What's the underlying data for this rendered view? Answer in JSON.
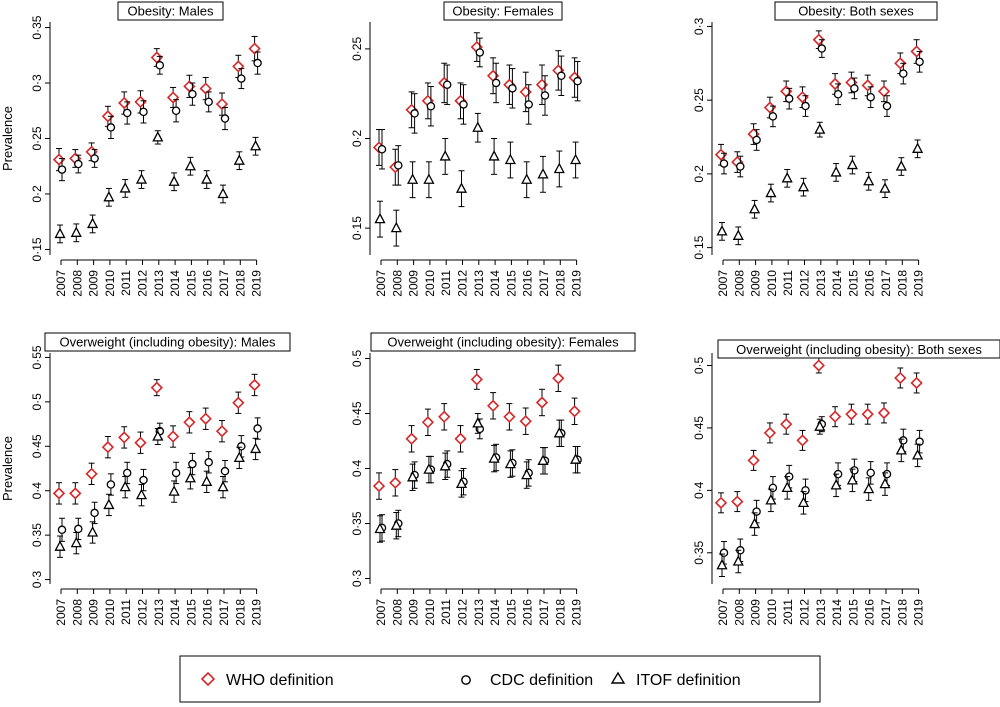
{
  "colors": {
    "who": "#d62728",
    "cdc": "#000000",
    "itof": "#000000",
    "axis": "#000000",
    "text": "#000000"
  },
  "ylabel": "Prevalence",
  "legend": {
    "who": "WHO definition",
    "cdc": "CDC definition",
    "itof": "ITOF  definition"
  },
  "chart_data": [
    {
      "type": "scatter",
      "title": "Obesity: Males",
      "ylabel": "Prevalence",
      "ylim": [
        0.145,
        0.355
      ],
      "yticks": [
        "0·15",
        "0·2",
        "0·25",
        "0·3",
        "0·35"
      ],
      "x": [
        "2007",
        "2008",
        "2009",
        "2010",
        "2011",
        "2012",
        "2013",
        "2014",
        "2015",
        "2016",
        "2017",
        "2018",
        "2019"
      ],
      "series": [
        {
          "name": "WHO definition",
          "values": [
            0.231,
            0.232,
            0.238,
            0.27,
            0.282,
            0.283,
            0.323,
            0.287,
            0.297,
            0.295,
            0.281,
            0.315,
            0.331
          ],
          "err": [
            0.01,
            0.008,
            0.008,
            0.009,
            0.01,
            0.01,
            0.008,
            0.009,
            0.01,
            0.01,
            0.01,
            0.01,
            0.011
          ]
        },
        {
          "name": "CDC definition",
          "values": [
            0.222,
            0.227,
            0.232,
            0.26,
            0.273,
            0.274,
            0.316,
            0.275,
            0.29,
            0.283,
            0.268,
            0.304,
            0.318
          ],
          "err": [
            0.01,
            0.008,
            0.008,
            0.01,
            0.01,
            0.01,
            0.008,
            0.01,
            0.01,
            0.009,
            0.01,
            0.009,
            0.01
          ]
        },
        {
          "name": "ITOF  definition",
          "values": [
            0.164,
            0.165,
            0.173,
            0.197,
            0.205,
            0.213,
            0.251,
            0.211,
            0.225,
            0.213,
            0.2,
            0.23,
            0.243
          ],
          "err": [
            0.008,
            0.008,
            0.008,
            0.008,
            0.008,
            0.008,
            0.006,
            0.008,
            0.008,
            0.008,
            0.008,
            0.008,
            0.008
          ]
        }
      ]
    },
    {
      "type": "scatter",
      "title": "Obesity: Females",
      "ylabel": "",
      "ylim": [
        0.135,
        0.265
      ],
      "yticks": [
        "0·15",
        "0·2",
        "0·25"
      ],
      "x": [
        "2007",
        "2008",
        "2009",
        "2010",
        "2011",
        "2012",
        "2013",
        "2014",
        "2015",
        "2016",
        "2017",
        "2018",
        "2019"
      ],
      "series": [
        {
          "name": "WHO definition",
          "values": [
            0.195,
            0.184,
            0.216,
            0.221,
            0.231,
            0.221,
            0.251,
            0.235,
            0.23,
            0.226,
            0.23,
            0.238,
            0.234
          ],
          "err": [
            0.01,
            0.01,
            0.01,
            0.01,
            0.011,
            0.01,
            0.008,
            0.01,
            0.011,
            0.011,
            0.011,
            0.011,
            0.011
          ]
        },
        {
          "name": "CDC definition",
          "values": [
            0.194,
            0.185,
            0.214,
            0.218,
            0.23,
            0.219,
            0.248,
            0.231,
            0.228,
            0.219,
            0.224,
            0.235,
            0.232
          ],
          "err": [
            0.011,
            0.011,
            0.011,
            0.011,
            0.011,
            0.011,
            0.008,
            0.011,
            0.011,
            0.011,
            0.011,
            0.011,
            0.011
          ]
        },
        {
          "name": "ITOF  definition",
          "values": [
            0.155,
            0.15,
            0.177,
            0.177,
            0.19,
            0.172,
            0.206,
            0.19,
            0.188,
            0.177,
            0.18,
            0.183,
            0.188
          ],
          "err": [
            0.01,
            0.01,
            0.01,
            0.01,
            0.01,
            0.01,
            0.008,
            0.01,
            0.01,
            0.01,
            0.01,
            0.01,
            0.01
          ]
        }
      ]
    },
    {
      "type": "scatter",
      "title": "Obesity: Both sexes",
      "ylabel": "",
      "ylim": [
        0.145,
        0.303
      ],
      "yticks": [
        "0·15",
        "0·2",
        "0·25",
        "0·3"
      ],
      "x": [
        "2007",
        "2008",
        "2009",
        "2010",
        "2011",
        "2012",
        "2013",
        "2014",
        "2015",
        "2016",
        "2017",
        "2018",
        "2019"
      ],
      "series": [
        {
          "name": "WHO definition",
          "values": [
            0.213,
            0.208,
            0.227,
            0.245,
            0.256,
            0.252,
            0.291,
            0.261,
            0.262,
            0.26,
            0.256,
            0.275,
            0.283
          ],
          "err": [
            0.007,
            0.007,
            0.007,
            0.007,
            0.007,
            0.007,
            0.006,
            0.007,
            0.007,
            0.007,
            0.007,
            0.007,
            0.008
          ]
        },
        {
          "name": "CDC definition",
          "values": [
            0.207,
            0.205,
            0.223,
            0.239,
            0.251,
            0.246,
            0.285,
            0.254,
            0.258,
            0.252,
            0.246,
            0.268,
            0.276
          ],
          "err": [
            0.007,
            0.007,
            0.007,
            0.007,
            0.007,
            0.007,
            0.006,
            0.007,
            0.007,
            0.007,
            0.007,
            0.007,
            0.007
          ]
        },
        {
          "name": "ITOF  definition",
          "values": [
            0.161,
            0.158,
            0.176,
            0.187,
            0.197,
            0.191,
            0.23,
            0.201,
            0.206,
            0.195,
            0.19,
            0.205,
            0.217
          ],
          "err": [
            0.006,
            0.006,
            0.006,
            0.006,
            0.006,
            0.006,
            0.005,
            0.006,
            0.006,
            0.006,
            0.006,
            0.006,
            0.006
          ]
        }
      ]
    },
    {
      "type": "scatter",
      "title": "Overweight (including obesity): Males",
      "ylabel": "Prevalence",
      "ylim": [
        0.295,
        0.555
      ],
      "yticks": [
        "0·3",
        "0·35",
        "0·4",
        "0·45",
        "0·5",
        "0·55"
      ],
      "x": [
        "2007",
        "2008",
        "2009",
        "2010",
        "2011",
        "2012",
        "2013",
        "2014",
        "2015",
        "2016",
        "2017",
        "2018",
        "2019"
      ],
      "series": [
        {
          "name": "WHO definition",
          "values": [
            0.397,
            0.397,
            0.419,
            0.449,
            0.46,
            0.454,
            0.516,
            0.461,
            0.477,
            0.481,
            0.467,
            0.499,
            0.519
          ],
          "err": [
            0.012,
            0.012,
            0.012,
            0.012,
            0.012,
            0.012,
            0.009,
            0.012,
            0.012,
            0.012,
            0.012,
            0.012,
            0.012
          ]
        },
        {
          "name": "CDC definition",
          "values": [
            0.356,
            0.357,
            0.375,
            0.407,
            0.42,
            0.412,
            0.467,
            0.42,
            0.43,
            0.432,
            0.422,
            0.45,
            0.47
          ],
          "err": [
            0.013,
            0.012,
            0.012,
            0.012,
            0.012,
            0.012,
            0.009,
            0.012,
            0.012,
            0.012,
            0.012,
            0.012,
            0.012
          ]
        },
        {
          "name": "ITOF  definition",
          "values": [
            0.337,
            0.341,
            0.353,
            0.384,
            0.404,
            0.395,
            0.461,
            0.399,
            0.414,
            0.41,
            0.404,
            0.437,
            0.447
          ],
          "err": [
            0.012,
            0.012,
            0.012,
            0.012,
            0.012,
            0.012,
            0.009,
            0.012,
            0.012,
            0.012,
            0.012,
            0.012,
            0.012
          ]
        }
      ]
    },
    {
      "type": "scatter",
      "title": "Overweight (including obesity): Females",
      "ylabel": "",
      "ylim": [
        0.295,
        0.505
      ],
      "yticks": [
        "0·3",
        "0·35",
        "0·4",
        "0·45",
        "0·5"
      ],
      "x": [
        "2007",
        "2008",
        "2009",
        "2010",
        "2011",
        "2012",
        "2013",
        "2014",
        "2015",
        "2016",
        "2017",
        "2018",
        "2019"
      ],
      "series": [
        {
          "name": "WHO definition",
          "values": [
            0.384,
            0.387,
            0.427,
            0.442,
            0.447,
            0.427,
            0.481,
            0.457,
            0.447,
            0.443,
            0.46,
            0.482,
            0.452
          ],
          "err": [
            0.012,
            0.012,
            0.012,
            0.012,
            0.012,
            0.012,
            0.009,
            0.012,
            0.012,
            0.012,
            0.012,
            0.012,
            0.012
          ]
        },
        {
          "name": "CDC definition",
          "values": [
            0.346,
            0.35,
            0.394,
            0.399,
            0.404,
            0.388,
            0.436,
            0.41,
            0.405,
            0.396,
            0.407,
            0.432,
            0.408
          ],
          "err": [
            0.012,
            0.012,
            0.012,
            0.012,
            0.012,
            0.012,
            0.009,
            0.012,
            0.012,
            0.012,
            0.012,
            0.012,
            0.012
          ]
        },
        {
          "name": "ITOF  definition",
          "values": [
            0.345,
            0.348,
            0.392,
            0.399,
            0.402,
            0.386,
            0.441,
            0.409,
            0.404,
            0.394,
            0.407,
            0.432,
            0.408
          ],
          "err": [
            0.012,
            0.012,
            0.012,
            0.012,
            0.012,
            0.012,
            0.009,
            0.012,
            0.012,
            0.012,
            0.012,
            0.012,
            0.012
          ]
        }
      ]
    },
    {
      "type": "scatter",
      "title": "Overweight (including obesity): Both sexes",
      "ylabel": "",
      "ylim": [
        0.325,
        0.51
      ],
      "yticks": [
        "0·35",
        "0·4",
        "0·45",
        "0·5"
      ],
      "x": [
        "2007",
        "2008",
        "2009",
        "2010",
        "2011",
        "2012",
        "2013",
        "2014",
        "2015",
        "2016",
        "2017",
        "2018",
        "2019"
      ],
      "series": [
        {
          "name": "WHO definition",
          "values": [
            0.39,
            0.391,
            0.424,
            0.446,
            0.453,
            0.44,
            0.5,
            0.459,
            0.461,
            0.461,
            0.462,
            0.49,
            0.486
          ],
          "err": [
            0.008,
            0.008,
            0.008,
            0.008,
            0.008,
            0.008,
            0.006,
            0.008,
            0.008,
            0.008,
            0.008,
            0.008,
            0.008
          ]
        },
        {
          "name": "CDC definition",
          "values": [
            0.35,
            0.352,
            0.383,
            0.402,
            0.411,
            0.4,
            0.453,
            0.413,
            0.416,
            0.414,
            0.413,
            0.44,
            0.439
          ],
          "err": [
            0.009,
            0.009,
            0.009,
            0.009,
            0.009,
            0.009,
            0.006,
            0.009,
            0.009,
            0.009,
            0.009,
            0.009,
            0.009
          ]
        },
        {
          "name": "ITOF  definition",
          "values": [
            0.34,
            0.343,
            0.373,
            0.392,
            0.402,
            0.39,
            0.451,
            0.404,
            0.408,
            0.401,
            0.405,
            0.432,
            0.428
          ],
          "err": [
            0.009,
            0.009,
            0.009,
            0.009,
            0.009,
            0.009,
            0.006,
            0.009,
            0.009,
            0.009,
            0.009,
            0.009,
            0.009
          ]
        }
      ]
    }
  ]
}
